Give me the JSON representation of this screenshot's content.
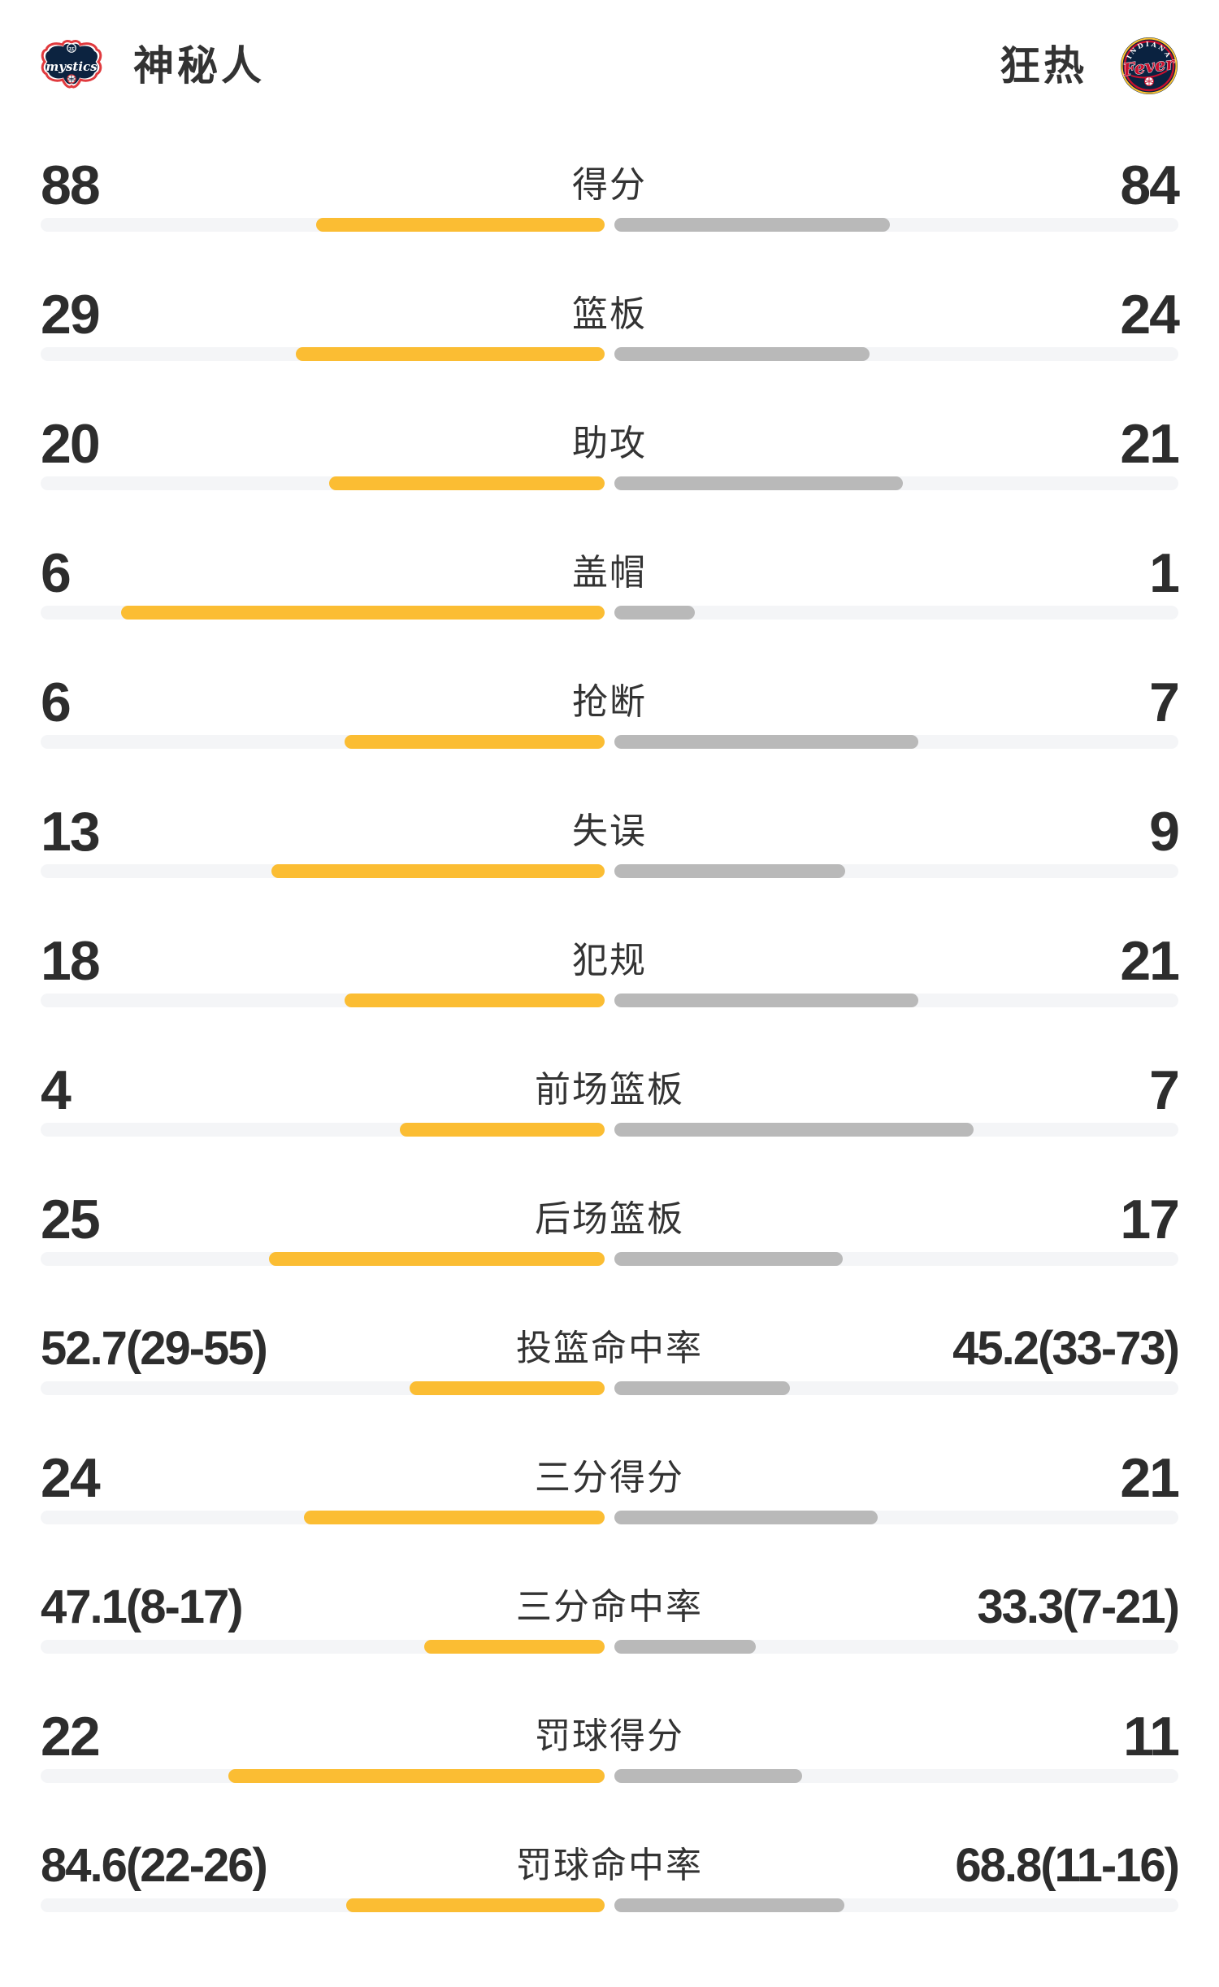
{
  "header": {
    "left_team": {
      "name": "神秘人",
      "logo_wordmark": "mystics"
    },
    "right_team": {
      "name": "狂热",
      "logo_wordmark": "Fever",
      "logo_arc_text": "INDIANA"
    }
  },
  "colors": {
    "left_bar_fill": "#FBBD33",
    "right_bar_fill": "#B9B9B9",
    "bar_track": "#F4F5F7",
    "number_text": "#2D2D2D",
    "label_text": "#333333",
    "mystics_navy": "#0C2340",
    "mystics_red": "#E03A3E",
    "fever_navy": "#0A2240",
    "fever_red": "#C8102E",
    "fever_yellow": "#FFC633"
  },
  "chart_data": {
    "type": "bar",
    "orientation": "horizontal-paired-center-anchored",
    "legend": [
      "神秘人",
      "狂热"
    ],
    "legend_position": "header",
    "grid": false,
    "categories": [
      "得分",
      "篮板",
      "助攻",
      "盖帽",
      "抢断",
      "失误",
      "犯规",
      "前场篮板",
      "后场篮板",
      "投篮命中率",
      "三分得分",
      "三分命中率",
      "罚球得分",
      "罚球命中率"
    ],
    "series": [
      {
        "name": "神秘人",
        "values": [
          88,
          29,
          20,
          6,
          6,
          13,
          18,
          4,
          25,
          52.7,
          24,
          47.1,
          22,
          84.6
        ]
      },
      {
        "name": "狂热",
        "values": [
          84,
          24,
          21,
          1,
          7,
          9,
          21,
          7,
          17,
          45.2,
          21,
          33.3,
          11,
          68.8
        ]
      }
    ],
    "rows": [
      {
        "label": "得分",
        "left": {
          "value": 88
        },
        "right": {
          "value": 84
        }
      },
      {
        "label": "篮板",
        "left": {
          "value": 29
        },
        "right": {
          "value": 24
        }
      },
      {
        "label": "助攻",
        "left": {
          "value": 20
        },
        "right": {
          "value": 21
        }
      },
      {
        "label": "盖帽",
        "left": {
          "value": 6
        },
        "right": {
          "value": 1
        }
      },
      {
        "label": "抢断",
        "left": {
          "value": 6
        },
        "right": {
          "value": 7
        }
      },
      {
        "label": "失误",
        "left": {
          "value": 13
        },
        "right": {
          "value": 9
        }
      },
      {
        "label": "犯规",
        "left": {
          "value": 18
        },
        "right": {
          "value": 21
        }
      },
      {
        "label": "前场篮板",
        "left": {
          "value": 4
        },
        "right": {
          "value": 7
        }
      },
      {
        "label": "后场篮板",
        "left": {
          "value": 25
        },
        "right": {
          "value": 17
        }
      },
      {
        "label": "投篮命中率",
        "left": {
          "value": 52.7,
          "detail": "29-55"
        },
        "right": {
          "value": 45.2,
          "detail": "33-73"
        }
      },
      {
        "label": "三分得分",
        "left": {
          "value": 24
        },
        "right": {
          "value": 21
        }
      },
      {
        "label": "三分命中率",
        "left": {
          "value": 47.1,
          "detail": "8-17"
        },
        "right": {
          "value": 33.3,
          "detail": "7-21"
        }
      },
      {
        "label": "罚球得分",
        "left": {
          "value": 22
        },
        "right": {
          "value": 11
        }
      },
      {
        "label": "罚球命中率",
        "left": {
          "value": 84.6,
          "detail": "22-26"
        },
        "right": {
          "value": 68.8,
          "detail": "11-16"
        }
      }
    ]
  }
}
